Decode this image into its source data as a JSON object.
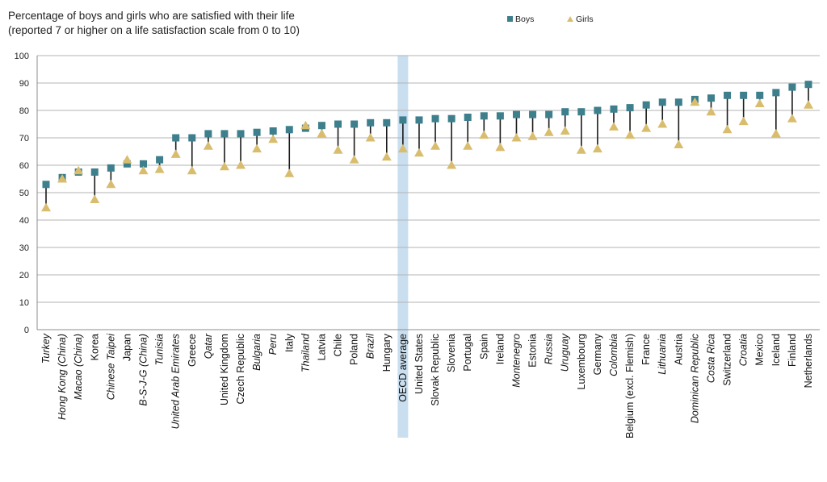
{
  "chart_data": {
    "type": "scatter",
    "title": "Percentage of boys and girls who are satisfied with their life",
    "subtitle": "(reported 7 or higher on a life satisfaction scale from 0 to 10)",
    "xlabel": "",
    "ylabel": "",
    "ylim": [
      0,
      100
    ],
    "yticks": [
      0,
      10,
      20,
      30,
      40,
      50,
      60,
      70,
      80,
      90,
      100
    ],
    "grid": true,
    "legend_position": "top-right",
    "highlighted_category": "OECD average",
    "colors": {
      "boys": "#3d7f8c",
      "girls": "#d9bd6e",
      "highlight": "#c9dff0",
      "connector": "#1a1a1a",
      "grid": "#b3b3b3"
    },
    "categories": [
      "Turkey",
      "Hong Kong (China)",
      "Macao (China)",
      "Korea",
      "Chinese Taipei",
      "Japan",
      "B-S-J-G (China)",
      "Tunisia",
      "United Arab Emirates",
      "Greece",
      "Qatar",
      "United Kingdom",
      "Czech Republic",
      "Bulgaria",
      "Peru",
      "Italy",
      "Thailand",
      "Latvia",
      "Chile",
      "Poland",
      "Brazil",
      "Hungary",
      "OECD average",
      "United States",
      "Slovak Republic",
      "Slovenia",
      "Portugal",
      "Spain",
      "Ireland",
      "Montenegro",
      "Estonia",
      "Russia",
      "Uruguay",
      "Luxembourg",
      "Germany",
      "Colombia",
      "Belgium (excl. Flemish)",
      "France",
      "Lithuania",
      "Austria",
      "Dominican Republic",
      "Costa Rica",
      "Switzerland",
      "Croatia",
      "Mexico",
      "Iceland",
      "Finland",
      "Netherlands"
    ],
    "italic_categories": [
      "Turkey",
      "Hong Kong (China)",
      "Macao (China)",
      "Chinese Taipei",
      "B-S-J-G (China)",
      "Tunisia",
      "United Arab Emirates",
      "Qatar",
      "Bulgaria",
      "Peru",
      "Thailand",
      "Brazil",
      "Montenegro",
      "Russia",
      "Uruguay",
      "Colombia",
      "Lithuania",
      "Dominican Republic",
      "Costa Rica",
      "Croatia"
    ],
    "series": [
      {
        "name": "Boys",
        "marker": "square",
        "values": [
          53,
          55.5,
          57.5,
          57.5,
          59,
          60.5,
          60.5,
          62,
          70,
          70,
          71.5,
          71.5,
          71.5,
          72,
          72.5,
          73,
          73.5,
          74.5,
          75,
          75,
          75.5,
          75.5,
          76.5,
          76.5,
          77,
          77,
          77.5,
          78,
          78,
          78.5,
          78.5,
          78.5,
          79.5,
          79.5,
          80,
          80.5,
          81,
          82,
          83,
          83,
          84,
          84.5,
          85.5,
          85.5,
          85.5,
          86.5,
          88.5,
          89.5
        ]
      },
      {
        "name": "Girls",
        "marker": "triangle",
        "values": [
          44.5,
          55,
          58,
          47.5,
          53,
          62,
          58,
          58.5,
          64,
          58,
          67,
          59.5,
          60,
          66,
          69.5,
          57,
          74.5,
          71.5,
          65.5,
          62,
          70,
          63,
          66,
          64.5,
          67,
          60,
          67,
          71,
          66.5,
          70,
          70.5,
          72,
          72.5,
          65.5,
          66,
          74,
          71,
          73.5,
          75,
          67.5,
          83,
          79.5,
          73,
          76,
          82.5,
          71.5,
          77,
          82
        ]
      }
    ]
  }
}
